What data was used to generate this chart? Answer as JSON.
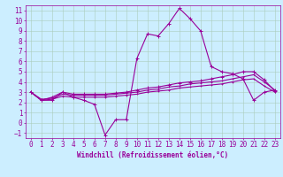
{
  "title": "",
  "xlabel": "Windchill (Refroidissement éolien,°C)",
  "background_color": "#cceeff",
  "grid_color": "#aaccbb",
  "line_color": "#990099",
  "xlim": [
    -0.5,
    23.5
  ],
  "ylim": [
    -1.5,
    11.5
  ],
  "xticks": [
    0,
    1,
    2,
    3,
    4,
    5,
    6,
    7,
    8,
    9,
    10,
    11,
    12,
    13,
    14,
    15,
    16,
    17,
    18,
    19,
    20,
    21,
    22,
    23
  ],
  "yticks": [
    -1,
    0,
    1,
    2,
    3,
    4,
    5,
    6,
    7,
    8,
    9,
    10,
    11
  ],
  "series1": [
    3.0,
    2.2,
    2.2,
    3.0,
    2.5,
    2.2,
    1.8,
    -1.2,
    0.3,
    0.3,
    6.3,
    8.7,
    8.5,
    9.7,
    11.2,
    10.2,
    9.0,
    5.5,
    5.0,
    4.8,
    4.3,
    2.2,
    3.0,
    3.2
  ],
  "series2": [
    3.0,
    2.2,
    2.5,
    3.0,
    2.8,
    2.8,
    2.8,
    2.8,
    2.9,
    3.0,
    3.2,
    3.4,
    3.5,
    3.7,
    3.9,
    4.0,
    4.1,
    4.3,
    4.5,
    4.7,
    5.0,
    5.0,
    4.2,
    3.1
  ],
  "series3": [
    3.0,
    2.3,
    2.4,
    2.8,
    2.7,
    2.7,
    2.7,
    2.7,
    2.8,
    2.9,
    3.0,
    3.2,
    3.3,
    3.5,
    3.6,
    3.8,
    3.9,
    4.0,
    4.1,
    4.3,
    4.5,
    4.7,
    4.0,
    3.2
  ],
  "series4": [
    3.0,
    2.2,
    2.3,
    2.6,
    2.5,
    2.5,
    2.5,
    2.5,
    2.6,
    2.7,
    2.8,
    3.0,
    3.1,
    3.2,
    3.4,
    3.5,
    3.6,
    3.7,
    3.8,
    4.0,
    4.2,
    4.3,
    3.6,
    3.0
  ],
  "tick_fontsize": 5.5,
  "xlabel_fontsize": 5.5
}
